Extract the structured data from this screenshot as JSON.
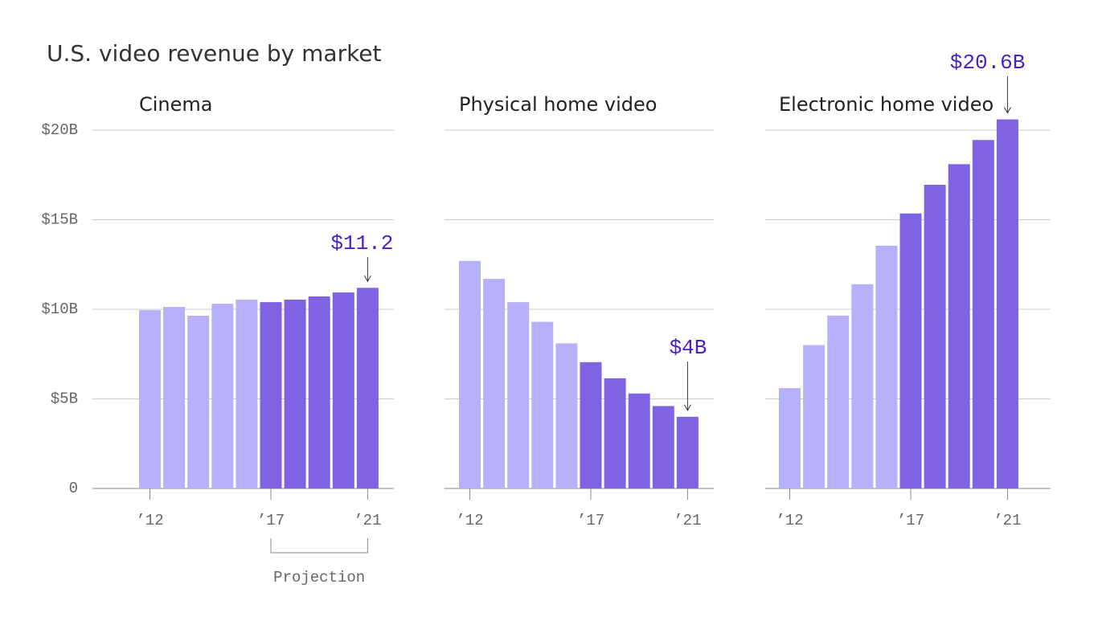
{
  "title": "U.S. video revenue by market",
  "ylim": [
    0,
    20
  ],
  "yticks": [
    0,
    {
      "value": 5,
      "label": "$5B"
    },
    {
      "value": 10,
      "label": "$10B"
    },
    {
      "value": 15,
      "label": "$15B"
    },
    {
      "value": 20,
      "label": "$20B"
    }
  ],
  "grid": true,
  "chart_data": [
    {
      "type": "bar",
      "title": "Cinema",
      "categories": [
        "’12",
        null,
        null,
        null,
        null,
        "’17",
        null,
        null,
        null,
        "’21"
      ],
      "values": [
        9.95,
        10.13,
        9.64,
        10.31,
        10.54,
        10.4,
        10.54,
        10.72,
        10.94,
        11.2
      ],
      "value_labels": [
        null,
        null,
        null,
        null,
        null,
        null,
        null,
        null,
        null,
        "$11.2"
      ],
      "colors": [
        "#b7b0fb",
        "#b7b0fb",
        "#b7b0fb",
        "#b7b0fb",
        "#b7b0fb",
        "#7f63e2",
        "#7f63e2",
        "#7f63e2",
        "#7f63e2",
        "#7f63e2"
      ],
      "bracket_label": "Projection"
    },
    {
      "type": "bar",
      "title": "Physical home video",
      "categories": [
        "’12",
        null,
        null,
        null,
        null,
        "’17",
        null,
        null,
        null,
        "’21"
      ],
      "values": [
        12.7,
        11.7,
        10.4,
        9.3,
        8.1,
        7.05,
        6.15,
        5.3,
        4.6,
        4
      ],
      "value_labels": [
        null,
        null,
        null,
        null,
        null,
        null,
        null,
        null,
        null,
        "$4B"
      ],
      "colors": [
        "#b7b0fb",
        "#b7b0fb",
        "#b7b0fb",
        "#b7b0fb",
        "#b7b0fb",
        "#7f63e2",
        "#7f63e2",
        "#7f63e2",
        "#7f63e2",
        "#7f63e2"
      ]
    },
    {
      "type": "bar",
      "title": "Electronic home video",
      "categories": [
        "’12",
        null,
        null,
        null,
        null,
        "’17",
        null,
        null,
        null,
        "’21"
      ],
      "values": [
        5.6,
        8.0,
        9.65,
        11.4,
        13.55,
        15.35,
        16.95,
        18.1,
        19.45,
        20.6
      ],
      "value_labels": [
        null,
        null,
        null,
        null,
        null,
        null,
        null,
        null,
        null,
        "$20.6B"
      ],
      "colors": [
        "#b7b0fb",
        "#b7b0fb",
        "#b7b0fb",
        "#b7b0fb",
        "#b7b0fb",
        "#7f63e2",
        "#7f63e2",
        "#7f63e2",
        "#7f63e2",
        "#7f63e2"
      ]
    }
  ]
}
